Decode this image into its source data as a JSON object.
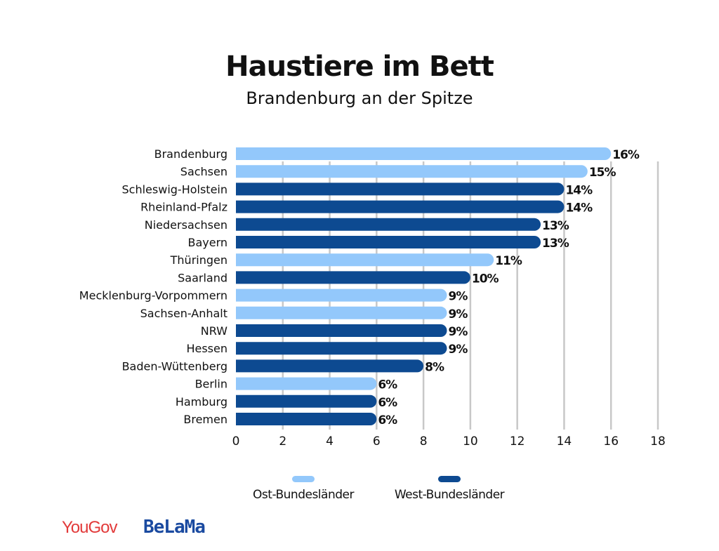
{
  "chart_data": {
    "type": "bar",
    "orientation": "horizontal",
    "title": "Haustiere im Bett",
    "subtitle": "Brandenburg an der Spitze",
    "categories": [
      "Brandenburg",
      "Sachsen",
      "Schleswig-Holstein",
      "Rheinland-Pfalz",
      "Niedersachsen",
      "Bayern",
      "Thüringen",
      "Saarland",
      "Mecklenburg-Vorpommern",
      "Sachsen-Anhalt",
      "NRW",
      "Hessen",
      "Baden-Wüttenberg",
      "Berlin",
      "Hamburg",
      "Bremen"
    ],
    "values": [
      16,
      15,
      14,
      14,
      13,
      13,
      11,
      10,
      9,
      9,
      9,
      9,
      8,
      6,
      6,
      6
    ],
    "value_labels": [
      "16%",
      "15%",
      "14%",
      "14%",
      "13%",
      "13%",
      "11%",
      "10%",
      "9%",
      "9%",
      "9%",
      "9%",
      "8%",
      "6%",
      "6%",
      "6%"
    ],
    "groups": [
      "Ost",
      "Ost",
      "West",
      "West",
      "West",
      "West",
      "Ost",
      "West",
      "Ost",
      "Ost",
      "West",
      "West",
      "West",
      "Ost",
      "West",
      "West"
    ],
    "xlim": [
      0,
      18
    ],
    "xticks": [
      "0",
      "2",
      "4",
      "6",
      "8",
      "10",
      "12",
      "14",
      "16",
      "18"
    ],
    "grid": true,
    "legend": {
      "placement": "bottom",
      "entries": [
        {
          "key": "Ost",
          "label": "Ost-Bundesländer",
          "color": "#93c8fb"
        },
        {
          "key": "West",
          "label": "West-Bundesländer",
          "color": "#0d4a91"
        }
      ]
    }
  },
  "logos": {
    "yougov": "YouGov",
    "belama": "BeLaMa"
  }
}
